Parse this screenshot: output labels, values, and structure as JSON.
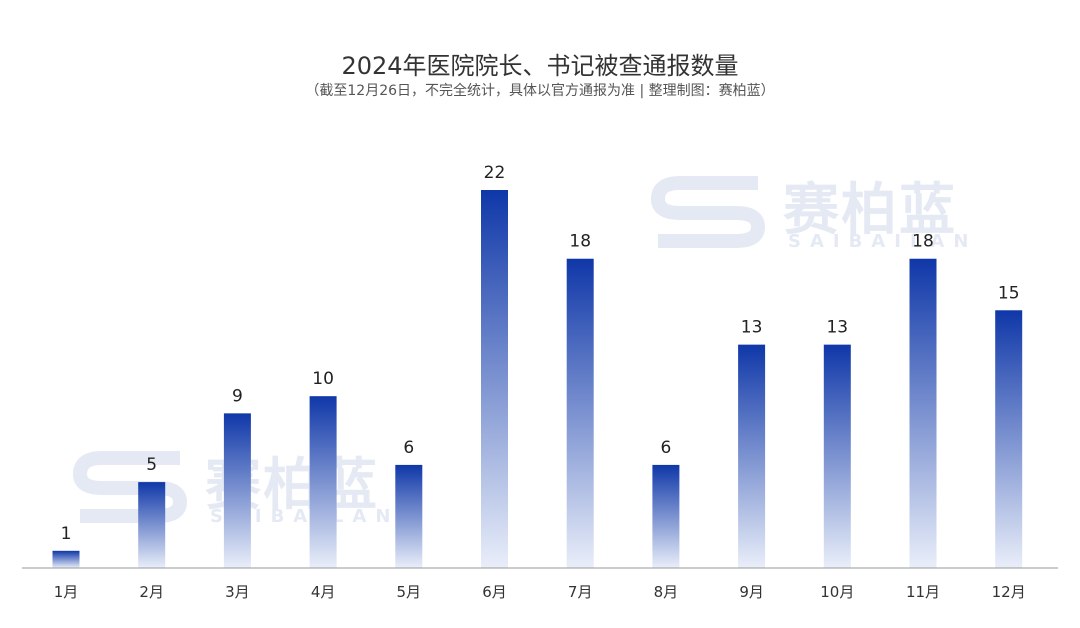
{
  "header": {
    "title": "2024年医院院长、书记被查通报数量",
    "subtitle": "（截至12月26日，不完全统计，具体以官方通报为准 | 整理制图：赛柏蓝）"
  },
  "watermark": {
    "text": "赛柏蓝",
    "sub": "SAIBAILAN"
  },
  "colors": {
    "bar_top": "#0f37a8",
    "bar_bottom": "#e9eef9",
    "axis": "#999999"
  },
  "chart_data": {
    "type": "bar",
    "title": "2024年医院院长、书记被查通报数量",
    "subtitle": "（截至12月26日，不完全统计，具体以官方通报为准 | 整理制图：赛柏蓝）",
    "categories": [
      "1月",
      "2月",
      "3月",
      "4月",
      "5月",
      "6月",
      "7月",
      "8月",
      "9月",
      "10月",
      "11月",
      "12月"
    ],
    "values": [
      1,
      5,
      9,
      10,
      6,
      22,
      18,
      6,
      13,
      13,
      18,
      15
    ],
    "ylim": [
      0,
      22
    ],
    "grid": false,
    "data_labels": true
  }
}
